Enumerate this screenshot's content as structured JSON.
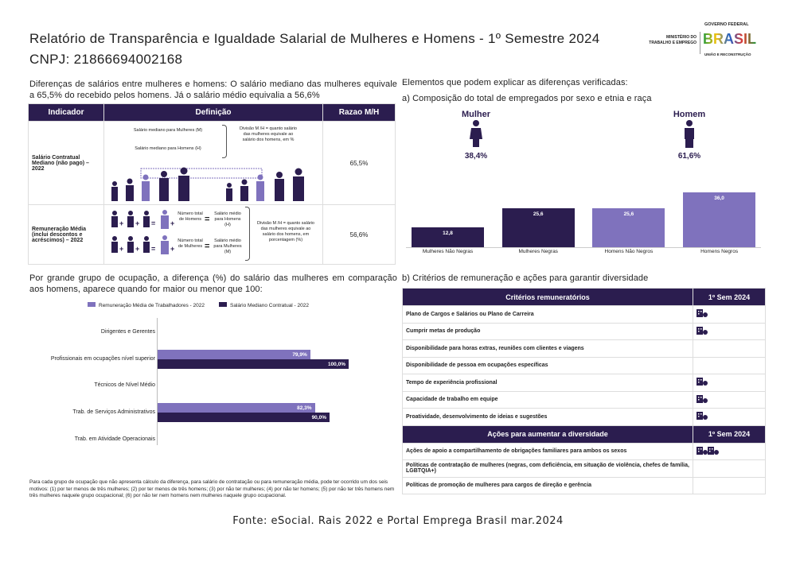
{
  "header": {
    "title": "Relatório de Transparência e Igualdade Salarial de Mulheres e Homens - 1º Semestre 2024",
    "cnpj": "CNPJ: 21866694002168",
    "logo": {
      "ministry": "MINISTÉRIO DO TRABALHO E EMPREGO",
      "gov": "GOVERNO FEDERAL",
      "brasil": "BRASIL",
      "slogan": "UNIÃO E RECONSTRUÇÃO"
    }
  },
  "left": {
    "intro": "Diferenças de salários entre mulheres e homens: O salário mediano das mulheres equivale a 65,5% do recebido pelos homens. Já o salário médio equivalia a 56,6%",
    "table": {
      "headers": [
        "Indicador",
        "Definição",
        "Razao M/H"
      ],
      "rows": [
        {
          "indicador": "Salário Contratual Mediano (não pago) – 2022",
          "def_a": "Salário mediano para Mulheres (M)",
          "def_b": "Salário mediano para Homens (H)",
          "def_c": "Divisão M /H = quanto salário das mulheres equivale ao salário dos homens, em %",
          "razao": "65,5%"
        },
        {
          "indicador": "Remuneração Média (inclui descontos e acréscimos) – 2022",
          "num_h": "Número total de Homens",
          "sal_h": "Salário médio para Homens (H)",
          "num_m": "Número total de Mulheres",
          "sal_m": "Salário médio para Mulheres (M)",
          "def_c": "Divisão M /H = quanto salário das mulheres equivale ao salário dos homens, em porcentagem (%)",
          "razao": "56,6%"
        }
      ]
    },
    "occupation_intro": "Por grande grupo de ocupação, a diferença (%) do salário das mulheres em comparação aos homens, aparece quando for maior ou menor que 100:",
    "footnote": "Para cada grupo de ocupação que não apresenta cálculo da diferença, para salário de contratação ou para remuneração média, pode ter ocorrido um dos seis motivos: (1) por ter menos de três mulheres; (2) por ter menos de três homens; (3) por não ter mulheres; (4) por não ter homens; (5) por não ter três homens nem três mulheres naquele grupo ocupacional; (6) por não ter nem homens nem mulheres naquele grupo ocupacional."
  },
  "right": {
    "intro": "Elementos que podem explicar as diferenças verificadas:",
    "a_title": "a) Composição do total de empregados por sexo e etnia e raça",
    "mulher": {
      "label": "Mulher",
      "pct": "38,4%"
    },
    "homem": {
      "label": "Homem",
      "pct": "61,6%"
    },
    "b_title": "b) Critérios de remuneração e ações para garantir diversidade",
    "criterios": {
      "header": "Critérios remuneratórios",
      "period": "1º Sem 2024",
      "rows": [
        {
          "label": "Plano de Cargos e Salários ou Plano de Carreira",
          "icons": 1
        },
        {
          "label": "Cumprir metas de produção",
          "icons": 1
        },
        {
          "label": "Disponibilidade para horas extras, reuniões com clientes e viagens",
          "icons": 0
        },
        {
          "label": "Disponibilidade de pessoa em ocupações específicas",
          "icons": 0
        },
        {
          "label": "Tempo de experiência profissional",
          "icons": 1
        },
        {
          "label": "Capacidade de trabalho em equipe",
          "icons": 1
        },
        {
          "label": "Proatividade, desenvolvimento de ideias e sugestões",
          "icons": 1
        }
      ]
    },
    "acoes": {
      "header": "Ações para aumentar a diversidade",
      "period": "1º Sem 2024",
      "rows": [
        {
          "label": "Ações de apoio a compartilhamento de obrigações familiares para ambos os sexos",
          "icons": 2
        },
        {
          "label": "Políticas de contratação de mulheres (negras, com deficiência, em situação de violência, chefes de família, LGBTQIA+)",
          "icons": 0
        },
        {
          "label": "Políticas de promoção de mulheres para cargos de direção e gerência",
          "icons": 0
        }
      ]
    }
  },
  "source": "Fonte: eSocial. Rais 2022 e Portal Emprega Brasil mar.2024",
  "colors": {
    "dark": "#2b1d4f",
    "light": "#7f72bd"
  },
  "chart_data": [
    {
      "type": "bar",
      "title": "Composição do total de empregados por sexo e etnia e raça",
      "categories": [
        "Mulheres Não Negras",
        "Mulheres Negras",
        "Homens Não Negros",
        "Homens Negros"
      ],
      "values": [
        12.8,
        25.6,
        25.6,
        36.0
      ],
      "labels": [
        "12,8",
        "25,6",
        "25,6",
        "36,0"
      ],
      "colors": [
        "#2b1d4f",
        "#2b1d4f",
        "#7f72bd",
        "#7f72bd"
      ],
      "ylim": [
        0,
        36
      ]
    },
    {
      "type": "bar",
      "orientation": "horizontal",
      "categories": [
        "Dirigentes e Gerentes",
        "Profissionais em ocupações nível superior",
        "Técnicos de Nível Médio",
        "Trab. de Serviços Administrativos",
        "Trab. em Atividade Operacionais"
      ],
      "series": [
        {
          "name": "Remuneração Média de Trabalhadores - 2022",
          "color": "#7f72bd",
          "values": [
            null,
            79.9,
            null,
            82.3,
            null
          ],
          "labels": [
            "",
            "79,9%",
            "",
            "82,3%",
            ""
          ]
        },
        {
          "name": "Salário Mediano Contratual - 2022",
          "color": "#2b1d4f",
          "values": [
            null,
            100.0,
            null,
            90.0,
            null
          ],
          "labels": [
            "",
            "100,0%",
            "",
            "90,0%",
            ""
          ]
        }
      ],
      "legend": "top",
      "xlim": [
        0,
        100
      ]
    }
  ]
}
